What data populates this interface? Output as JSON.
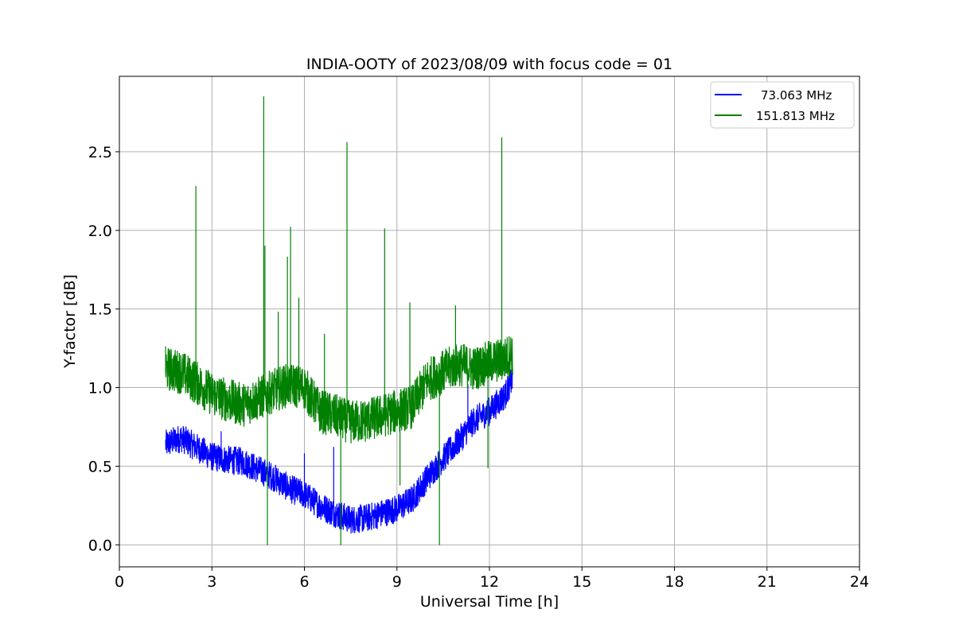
{
  "chart_data": {
    "type": "line",
    "title": "INDIA-OOTY of 2023/08/09 with focus code = 01",
    "xlabel": "Universal Time [h]",
    "ylabel": "Y-factor [dB]",
    "xlim": [
      0,
      24
    ],
    "ylim": [
      -0.14,
      2.98
    ],
    "xticks": [
      0,
      3,
      6,
      9,
      12,
      15,
      18,
      21,
      24
    ],
    "yticks": [
      0.0,
      0.5,
      1.0,
      1.5,
      2.0,
      2.5
    ],
    "xtick_labels": [
      "0",
      "3",
      "6",
      "9",
      "12",
      "15",
      "18",
      "21",
      "24"
    ],
    "ytick_labels": [
      "0.0",
      "0.5",
      "1.0",
      "1.5",
      "2.0",
      "2.5"
    ],
    "grid": true,
    "legend_position": "top-right",
    "series": [
      {
        "name": "73.063 MHz",
        "color": "#0000ff",
        "noise": 0.09,
        "x": [
          1.5,
          2.0,
          2.5,
          3.0,
          3.5,
          4.0,
          4.5,
          5.0,
          5.5,
          6.0,
          6.5,
          7.0,
          7.5,
          8.0,
          8.5,
          9.0,
          9.5,
          10.0,
          10.5,
          11.0,
          11.5,
          12.0,
          12.5,
          12.75
        ],
        "y": [
          0.64,
          0.68,
          0.62,
          0.56,
          0.54,
          0.53,
          0.48,
          0.43,
          0.36,
          0.32,
          0.25,
          0.2,
          0.16,
          0.17,
          0.2,
          0.23,
          0.29,
          0.43,
          0.55,
          0.66,
          0.79,
          0.85,
          0.95,
          1.06
        ],
        "spikes": [
          {
            "x": 3.3,
            "y": 0.72
          },
          {
            "x": 6.0,
            "y": 0.58
          },
          {
            "x": 6.95,
            "y": 0.62
          },
          {
            "x": 7.2,
            "y": 0.1
          },
          {
            "x": 11.3,
            "y": 1.02
          },
          {
            "x": 12.2,
            "y": 0.88
          }
        ]
      },
      {
        "name": "151.813 MHz",
        "color": "#008000",
        "noise": 0.14,
        "x": [
          1.5,
          2.0,
          2.5,
          3.0,
          3.5,
          4.0,
          4.5,
          5.0,
          5.5,
          6.0,
          6.5,
          7.0,
          7.5,
          8.0,
          8.5,
          9.0,
          9.5,
          10.0,
          10.5,
          11.0,
          11.5,
          12.0,
          12.5,
          12.75
        ],
        "y": [
          1.12,
          1.1,
          1.03,
          0.96,
          0.92,
          0.89,
          0.93,
          0.98,
          1.02,
          1.0,
          0.85,
          0.82,
          0.78,
          0.79,
          0.82,
          0.85,
          0.88,
          1.05,
          1.1,
          1.15,
          1.12,
          1.16,
          1.18,
          1.22
        ],
        "spikes": [
          {
            "x": 1.5,
            "y": 1.26
          },
          {
            "x": 2.48,
            "y": 2.28
          },
          {
            "x": 4.68,
            "y": 2.85
          },
          {
            "x": 4.72,
            "y": 1.9
          },
          {
            "x": 4.8,
            "y": 0.0
          },
          {
            "x": 5.15,
            "y": 1.48
          },
          {
            "x": 5.45,
            "y": 1.83
          },
          {
            "x": 5.55,
            "y": 2.02
          },
          {
            "x": 5.82,
            "y": 1.57
          },
          {
            "x": 6.65,
            "y": 1.34
          },
          {
            "x": 7.18,
            "y": 0.0
          },
          {
            "x": 7.38,
            "y": 2.56
          },
          {
            "x": 8.6,
            "y": 2.01
          },
          {
            "x": 9.1,
            "y": 0.38
          },
          {
            "x": 9.42,
            "y": 1.54
          },
          {
            "x": 10.38,
            "y": 0.0
          },
          {
            "x": 10.9,
            "y": 1.52
          },
          {
            "x": 11.95,
            "y": 0.49
          },
          {
            "x": 12.4,
            "y": 2.59
          }
        ]
      }
    ]
  }
}
